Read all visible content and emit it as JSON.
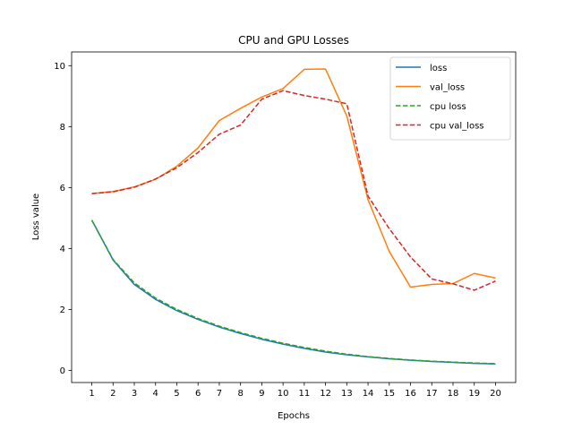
{
  "chart_data": {
    "type": "line",
    "title": "CPU and GPU Losses",
    "xlabel": "Epochs",
    "ylabel": "Loss value",
    "x": [
      1,
      2,
      3,
      4,
      5,
      6,
      7,
      8,
      9,
      10,
      11,
      12,
      13,
      14,
      15,
      16,
      17,
      18,
      19,
      20
    ],
    "xticks": [
      "1",
      "2",
      "3",
      "4",
      "5",
      "6",
      "7",
      "8",
      "9",
      "10",
      "11",
      "12",
      "13",
      "14",
      "15",
      "16",
      "17",
      "18",
      "19",
      "20"
    ],
    "yticks": [
      "0",
      "2",
      "4",
      "6",
      "8",
      "10"
    ],
    "ylim": [
      -0.4,
      10.45
    ],
    "xlim": [
      0.05,
      20.95
    ],
    "grid": false,
    "legend_position": "top-right",
    "series": [
      {
        "name": "loss",
        "color": "#1f77b4",
        "dash": "solid",
        "values": [
          4.93,
          3.62,
          2.82,
          2.33,
          1.96,
          1.67,
          1.42,
          1.21,
          1.02,
          0.86,
          0.72,
          0.6,
          0.51,
          0.44,
          0.38,
          0.33,
          0.29,
          0.26,
          0.23,
          0.21
        ]
      },
      {
        "name": "val_loss",
        "color": "#ff7f0e",
        "dash": "solid",
        "values": [
          5.8,
          5.87,
          6.02,
          6.27,
          6.7,
          7.3,
          8.2,
          8.6,
          8.97,
          9.25,
          9.88,
          9.89,
          8.35,
          5.6,
          3.9,
          2.73,
          2.82,
          2.85,
          3.18,
          3.03
        ]
      },
      {
        "name": "cpu loss",
        "color": "#2ca02c",
        "dash": "dashed",
        "values": [
          4.93,
          3.64,
          2.87,
          2.37,
          2.0,
          1.7,
          1.45,
          1.24,
          1.05,
          0.89,
          0.75,
          0.63,
          0.53,
          0.45,
          0.39,
          0.34,
          0.3,
          0.27,
          0.24,
          0.22
        ]
      },
      {
        "name": "cpu val_loss",
        "color": "#d62728",
        "dash": "dashed",
        "values": [
          5.8,
          5.86,
          6.01,
          6.28,
          6.65,
          7.15,
          7.75,
          8.05,
          8.9,
          9.18,
          9.02,
          8.9,
          8.75,
          5.72,
          4.65,
          3.72,
          3.0,
          2.84,
          2.63,
          2.93
        ]
      }
    ]
  }
}
